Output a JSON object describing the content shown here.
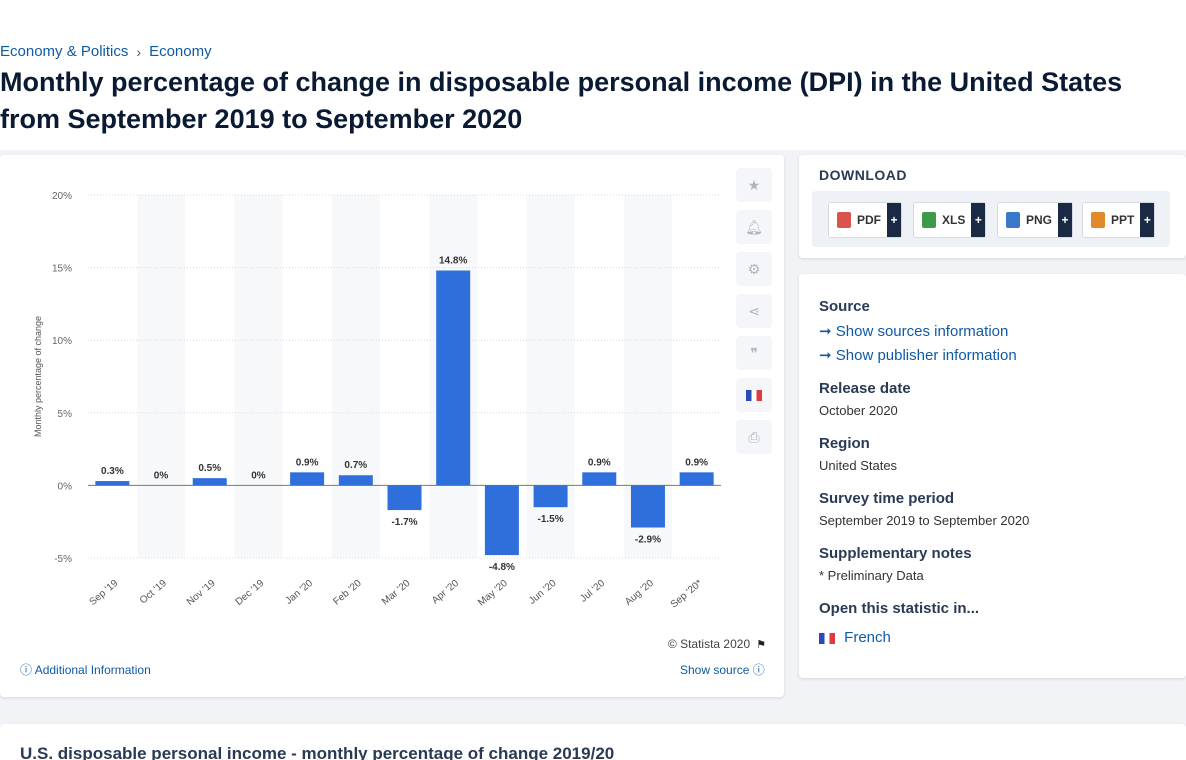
{
  "breadcrumb": {
    "items": [
      "Economy & Politics",
      "Economy"
    ],
    "separator": "›"
  },
  "page_title": "Monthly percentage of change in disposable personal income (DPI) in the United States from September 2019 to September 2020",
  "chart_data": {
    "type": "bar",
    "categories": [
      "Sep '19",
      "Oct '19",
      "Nov '19",
      "Dec '19",
      "Jan '20",
      "Feb '20",
      "Mar '20",
      "Apr '20",
      "May '20",
      "Jun '20",
      "Jul '20",
      "Aug '20",
      "Sep '20*"
    ],
    "values": [
      0.3,
      0,
      0.5,
      0,
      0.9,
      0.7,
      -1.7,
      14.8,
      -4.8,
      -1.5,
      0.9,
      -2.9,
      0.9
    ],
    "data_labels": [
      "0.3%",
      "0%",
      "0.5%",
      "0%",
      "0.9%",
      "0.7%",
      "-1.7%",
      "14.8%",
      "-4.8%",
      "-1.5%",
      "0.9%",
      "-2.9%",
      "0.9%"
    ],
    "ylabel": "Monthly percentage of change",
    "ylim": [
      -5,
      20
    ],
    "yticks": [
      20,
      15,
      10,
      5,
      0,
      -5
    ],
    "ytick_labels": [
      "20%",
      "15%",
      "10%",
      "5%",
      "0%",
      "-5%"
    ],
    "bar_color": "#2f6fdb",
    "grid": true
  },
  "chart_footer": {
    "copyright": "© Statista 2020",
    "additional_info": "Additional Information",
    "show_source": "Show source"
  },
  "tools": [
    "star-icon",
    "bell-icon",
    "gear-icon",
    "share-icon",
    "quote-icon",
    "french-flag-icon",
    "print-icon"
  ],
  "download": {
    "title": "DOWNLOAD",
    "buttons": [
      {
        "label": "PDF",
        "plus": "+",
        "color": "#d9534f"
      },
      {
        "label": "XLS",
        "plus": "+",
        "color": "#3c9a48"
      },
      {
        "label": "PNG",
        "plus": "+",
        "color": "#3a79c9"
      },
      {
        "label": "PPT",
        "plus": "+",
        "color": "#e08a2b"
      }
    ]
  },
  "info": {
    "source_label": "Source",
    "show_sources": "Show sources information",
    "show_publisher": "Show publisher information",
    "release_label": "Release date",
    "release_value": "October 2020",
    "region_label": "Region",
    "region_value": "United States",
    "survey_label": "Survey time period",
    "survey_value": "September 2019 to September 2020",
    "notes_label": "Supplementary notes",
    "notes_value": "* Preliminary Data",
    "open_label": "Open this statistic in...",
    "open_french": "French"
  },
  "bottom_title": "U.S. disposable personal income - monthly percentage of change 2019/20"
}
